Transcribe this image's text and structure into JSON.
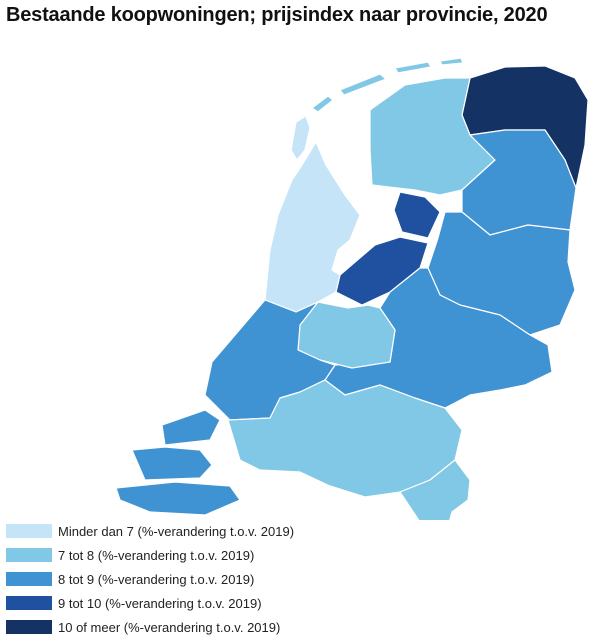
{
  "title": "Bestaande koopwoningen; prijsindex naar provincie, 2020",
  "legend": [
    {
      "label": "Minder dan 7 (%-verandering t.o.v. 2019)",
      "color": "#c6e4f8"
    },
    {
      "label": "7 tot 8 (%-verandering t.o.v. 2019)",
      "color": "#80c8e6"
    },
    {
      "label": "8 tot 9 (%-verandering t.o.v. 2019)",
      "color": "#3f93d3"
    },
    {
      "label": "9 tot 10 (%-verandering t.o.v. 2019)",
      "color": "#2050a0"
    },
    {
      "label": "10 of meer (%-verandering t.o.v. 2019)",
      "color": "#143263"
    }
  ],
  "regions": [
    {
      "id": "groningen",
      "class": 4
    },
    {
      "id": "friesland",
      "class": 1
    },
    {
      "id": "drenthe",
      "class": 2
    },
    {
      "id": "overijssel",
      "class": 2
    },
    {
      "id": "noordoostpolder",
      "class": 3
    },
    {
      "id": "flevoland",
      "class": 3
    },
    {
      "id": "gelderland",
      "class": 2
    },
    {
      "id": "utrecht",
      "class": 1
    },
    {
      "id": "noord-holland",
      "class": 0
    },
    {
      "id": "zuid-holland",
      "class": 2
    },
    {
      "id": "zeeland",
      "class": 2
    },
    {
      "id": "noord-brabant",
      "class": 1
    },
    {
      "id": "limburg",
      "class": 1
    }
  ]
}
